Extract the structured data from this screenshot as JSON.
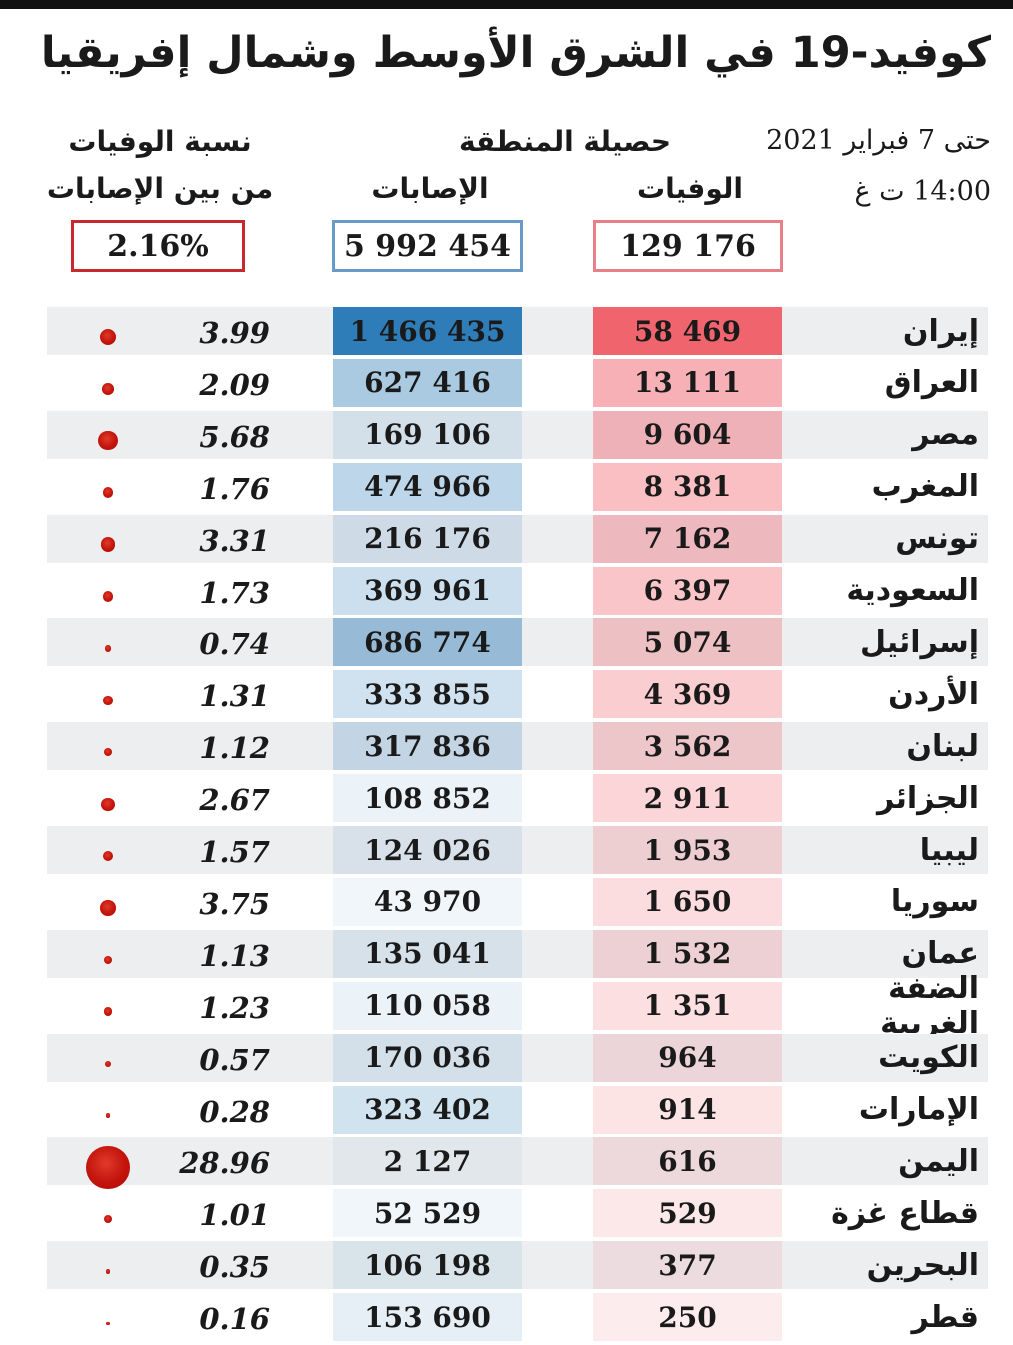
{
  "title": "كوفيد-19 في الشرق الأوسط وشمال إفريقيا",
  "date_line1": "حتى 7 فبراير 2021",
  "date_line2": "14:00 ت غ",
  "header": {
    "deaths": "الوفيات",
    "cases": "الإصابات",
    "region_total": "حصيلة المنطقة",
    "rate_line1": "نسبة الوفيات",
    "rate_line2": "من بين الإصابات"
  },
  "totals": {
    "deaths": "129 176",
    "cases": "5 992 454",
    "rate": "2.16%"
  },
  "colors": {
    "deaths": "#f0646e",
    "cases": "#2e7cb8",
    "dot": "#c2140c",
    "deaths_box": "#e8808a",
    "cases_box": "#6a9ac8",
    "rate_box": "#c8282e"
  },
  "chart_data": {
    "type": "table",
    "title": "كوفيد-19 في الشرق الأوسط وشمال إفريقيا",
    "columns": [
      "الوفيات",
      "الإصابات",
      "نسبة الوفيات من بين الإصابات"
    ],
    "rows": [
      {
        "country": "إيران",
        "deaths": 58469,
        "deaths_label": "58 469",
        "cases": 1466435,
        "cases_label": "1 466 435",
        "rate": "3.99"
      },
      {
        "country": "العراق",
        "deaths": 13111,
        "deaths_label": "13 111",
        "cases": 627416,
        "cases_label": "627 416",
        "rate": "2.09"
      },
      {
        "country": "مصر",
        "deaths": 9604,
        "deaths_label": "9 604",
        "cases": 169106,
        "cases_label": "169 106",
        "rate": "5.68"
      },
      {
        "country": "المغرب",
        "deaths": 8381,
        "deaths_label": "8 381",
        "cases": 474966,
        "cases_label": "474 966",
        "rate": "1.76"
      },
      {
        "country": "تونس",
        "deaths": 7162,
        "deaths_label": "7 162",
        "cases": 216176,
        "cases_label": "216 176",
        "rate": "3.31"
      },
      {
        "country": "السعودية",
        "deaths": 6397,
        "deaths_label": "6 397",
        "cases": 369961,
        "cases_label": "369 961",
        "rate": "1.73"
      },
      {
        "country": "إسرائيل",
        "deaths": 5074,
        "deaths_label": "5 074",
        "cases": 686774,
        "cases_label": "686 774",
        "rate": "0.74"
      },
      {
        "country": "الأردن",
        "deaths": 4369,
        "deaths_label": "4 369",
        "cases": 333855,
        "cases_label": "333 855",
        "rate": "1.31"
      },
      {
        "country": "لبنان",
        "deaths": 3562,
        "deaths_label": "3 562",
        "cases": 317836,
        "cases_label": "317 836",
        "rate": "1.12"
      },
      {
        "country": "الجزائر",
        "deaths": 2911,
        "deaths_label": "2 911",
        "cases": 108852,
        "cases_label": "108 852",
        "rate": "2.67"
      },
      {
        "country": "ليبيا",
        "deaths": 1953,
        "deaths_label": "1 953",
        "cases": 124026,
        "cases_label": "124 026",
        "rate": "1.57"
      },
      {
        "country": "سوريا",
        "deaths": 1650,
        "deaths_label": "1 650",
        "cases": 43970,
        "cases_label": "43 970",
        "rate": "3.75"
      },
      {
        "country": "عمان",
        "deaths": 1532,
        "deaths_label": "1 532",
        "cases": 135041,
        "cases_label": "135 041",
        "rate": "1.13"
      },
      {
        "country": "الضفة الغربية",
        "deaths": 1351,
        "deaths_label": "1 351",
        "cases": 110058,
        "cases_label": "110 058",
        "rate": "1.23"
      },
      {
        "country": "الكويت",
        "deaths": 964,
        "deaths_label": "964",
        "cases": 170036,
        "cases_label": "170 036",
        "rate": "0.57"
      },
      {
        "country": "الإمارات",
        "deaths": 914,
        "deaths_label": "914",
        "cases": 323402,
        "cases_label": "323 402",
        "rate": "0.28"
      },
      {
        "country": "اليمن",
        "deaths": 616,
        "deaths_label": "616",
        "cases": 2127,
        "cases_label": "2 127",
        "rate": "28.96"
      },
      {
        "country": "قطاع غزة",
        "deaths": 529,
        "deaths_label": "529",
        "cases": 52529,
        "cases_label": "52 529",
        "rate": "1.01"
      },
      {
        "country": "البحرين",
        "deaths": 377,
        "deaths_label": "377",
        "cases": 106198,
        "cases_label": "106 198",
        "rate": "0.35"
      },
      {
        "country": "قطر",
        "deaths": 250,
        "deaths_label": "250",
        "cases": 153690,
        "cases_label": "153 690",
        "rate": "0.16"
      }
    ]
  }
}
